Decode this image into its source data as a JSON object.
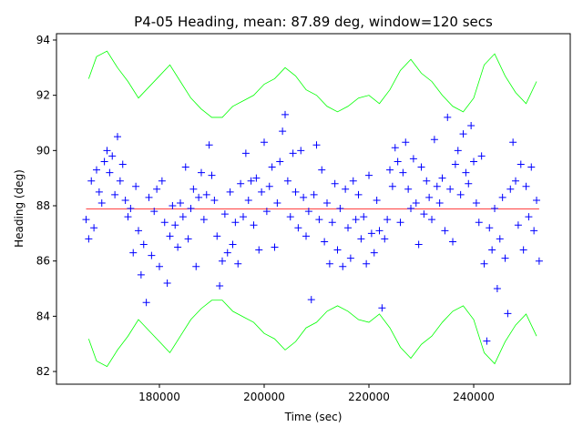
{
  "chart_data": {
    "type": "line",
    "title": "P4-05 Heading, mean: 87.89 deg, window=120 secs",
    "x_label": "Time (sec)",
    "y_label": "Heading (deg)",
    "xlim": [
      160350,
      258430
    ],
    "ylim": [
      81.54,
      94.23
    ],
    "xticks": [
      180000,
      200000,
      220000,
      240000
    ],
    "yticks": [
      82,
      84,
      86,
      88,
      90,
      92,
      94
    ],
    "series": [
      {
        "color": "#00ff00",
        "marker": "none",
        "x": [
          166500,
          168000,
          170000,
          172000,
          174000,
          176000,
          178000,
          180000,
          182000,
          184000,
          186000,
          188000,
          190000,
          192000,
          194000,
          196000,
          198000,
          200000,
          202000,
          204000,
          206000,
          208000,
          210000,
          212000,
          214000,
          216000,
          218000,
          220000,
          222000,
          224000,
          226000,
          228000,
          230000,
          232000,
          234000,
          236000,
          238000,
          240000,
          242000,
          244000,
          246000,
          248000,
          250000,
          252000
        ],
        "values": [
          92.6,
          93.4,
          93.6,
          93.0,
          92.5,
          91.9,
          92.3,
          92.7,
          93.1,
          92.5,
          91.9,
          91.5,
          91.2,
          91.2,
          91.6,
          91.8,
          92.0,
          92.4,
          92.6,
          93.0,
          92.7,
          92.2,
          92.0,
          91.6,
          91.4,
          91.6,
          91.9,
          92.0,
          91.7,
          92.2,
          92.9,
          93.3,
          92.8,
          92.5,
          92.0,
          91.6,
          91.4,
          91.9,
          93.1,
          93.5,
          92.7,
          92.1,
          91.7,
          92.5
        ]
      },
      {
        "color": "#00ff00",
        "marker": "none",
        "x": [
          166500,
          168000,
          170000,
          172000,
          174000,
          176000,
          178000,
          180000,
          182000,
          184000,
          186000,
          188000,
          190000,
          192000,
          194000,
          196000,
          198000,
          200000,
          202000,
          204000,
          206000,
          208000,
          210000,
          212000,
          214000,
          216000,
          218000,
          220000,
          222000,
          224000,
          226000,
          228000,
          230000,
          232000,
          234000,
          236000,
          238000,
          240000,
          242000,
          244000,
          246000,
          248000,
          250000,
          252000
        ],
        "values": [
          83.18,
          82.38,
          82.18,
          82.78,
          83.28,
          83.88,
          83.48,
          83.08,
          82.68,
          83.28,
          83.88,
          84.28,
          84.58,
          84.58,
          84.18,
          83.98,
          83.78,
          83.38,
          83.18,
          82.78,
          83.08,
          83.58,
          83.78,
          84.18,
          84.38,
          84.18,
          83.88,
          83.78,
          84.08,
          83.58,
          82.88,
          82.48,
          82.98,
          83.28,
          83.78,
          84.18,
          84.38,
          83.88,
          82.68,
          82.28,
          83.08,
          83.68,
          84.08,
          83.28
        ]
      },
      {
        "color": "#ff0000",
        "marker": "none",
        "x": [
          166000,
          252500
        ],
        "values": [
          87.89,
          87.89
        ]
      },
      {
        "color": "#0000ff",
        "marker": "+",
        "x": [
          166000,
          166500,
          167000,
          167500,
          168000,
          168500,
          169000,
          169500,
          170000,
          170500,
          171000,
          171500,
          172000,
          172500,
          173000,
          173500,
          174000,
          174500,
          175000,
          175500,
          176000,
          176500,
          177000,
          177500,
          178000,
          178500,
          179000,
          179500,
          180000,
          180500,
          181000,
          181500,
          182000,
          182500,
          183000,
          183500,
          184000,
          184500,
          185000,
          185500,
          186000,
          186500,
          187000,
          187500,
          188000,
          188500,
          189000,
          189500,
          190000,
          190500,
          191000,
          191500,
          192000,
          192500,
          193000,
          193500,
          194000,
          194500,
          195000,
          195500,
          196000,
          196500,
          197000,
          197500,
          198000,
          198500,
          199000,
          199500,
          200000,
          200500,
          201000,
          201500,
          202000,
          202500,
          203000,
          203500,
          204000,
          204500,
          205000,
          205500,
          206000,
          206500,
          207000,
          207500,
          208000,
          208500,
          209000,
          209500,
          210000,
          210500,
          211000,
          211500,
          212000,
          212500,
          213000,
          213500,
          214000,
          214500,
          215000,
          215500,
          216000,
          216500,
          217000,
          217500,
          218000,
          218500,
          219000,
          219500,
          220000,
          220500,
          221000,
          221500,
          222000,
          222500,
          223000,
          223500,
          224000,
          224500,
          225000,
          225500,
          226000,
          226500,
          227000,
          227500,
          228000,
          228500,
          229000,
          229500,
          230000,
          230500,
          231000,
          231500,
          232000,
          232500,
          233000,
          233500,
          234000,
          234500,
          235000,
          235500,
          236000,
          236500,
          237000,
          237500,
          238000,
          238500,
          239000,
          239500,
          240000,
          240500,
          241000,
          241500,
          242000,
          242500,
          243000,
          243500,
          244000,
          244500,
          245000,
          245500,
          246000,
          246500,
          247000,
          247500,
          248000,
          248500,
          249000,
          249500,
          250000,
          250500,
          251000,
          251500,
          252000,
          252500
        ],
        "values": [
          87.5,
          86.8,
          88.9,
          87.2,
          89.3,
          88.5,
          88.1,
          89.6,
          90.0,
          89.2,
          89.8,
          88.4,
          90.5,
          88.9,
          89.5,
          88.2,
          87.6,
          87.9,
          86.3,
          88.7,
          87.1,
          85.5,
          86.6,
          84.5,
          88.3,
          86.2,
          87.8,
          88.6,
          85.8,
          88.9,
          87.4,
          85.2,
          86.9,
          88.0,
          87.3,
          86.5,
          88.1,
          87.6,
          89.4,
          86.8,
          87.9,
          88.6,
          85.8,
          88.3,
          89.2,
          87.5,
          88.4,
          90.2,
          89.1,
          88.2,
          86.9,
          85.1,
          86.0,
          87.7,
          86.3,
          88.5,
          86.6,
          87.4,
          85.9,
          88.8,
          87.6,
          89.9,
          88.2,
          88.9,
          87.3,
          89.0,
          86.4,
          88.5,
          90.3,
          87.8,
          88.7,
          89.4,
          86.5,
          88.1,
          89.6,
          90.7,
          91.3,
          88.9,
          87.6,
          89.9,
          88.5,
          87.2,
          90.0,
          88.3,
          86.9,
          87.8,
          84.6,
          88.4,
          90.2,
          87.5,
          89.3,
          86.7,
          88.1,
          85.9,
          87.4,
          88.8,
          86.4,
          87.9,
          85.8,
          88.6,
          87.2,
          86.1,
          88.9,
          87.5,
          88.4,
          86.8,
          87.6,
          85.9,
          89.1,
          87.0,
          86.3,
          88.2,
          87.1,
          84.3,
          86.8,
          87.5,
          89.3,
          88.7,
          90.1,
          89.6,
          87.4,
          89.2,
          90.3,
          88.6,
          87.9,
          89.7,
          88.1,
          86.6,
          89.4,
          87.7,
          88.9,
          88.3,
          87.5,
          90.4,
          88.7,
          88.1,
          89.0,
          87.1,
          91.2,
          88.6,
          86.7,
          89.5,
          90.0,
          88.4,
          90.6,
          89.2,
          88.8,
          90.9,
          89.6,
          88.1,
          87.4,
          89.8,
          85.9,
          83.1,
          87.2,
          86.4,
          87.9,
          85.0,
          86.8,
          88.3,
          86.1,
          84.1,
          88.6,
          90.3,
          88.9,
          87.3,
          89.5,
          86.4,
          88.7,
          87.6,
          89.4,
          87.1,
          88.2,
          86.0
        ]
      }
    ]
  }
}
